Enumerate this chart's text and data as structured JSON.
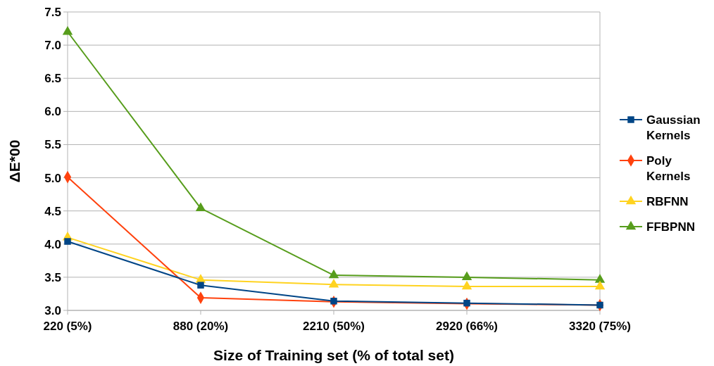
{
  "chart_data": {
    "type": "line",
    "xlabel": "Size of Training set (% of total set)",
    "ylabel": "ΔE*00",
    "categories": [
      "220 (5%)",
      "880 (20%)",
      "2210 (50%)",
      "2920 (66%)",
      "3320 (75%)"
    ],
    "ylim": [
      3.0,
      7.5
    ],
    "yticks": [
      {
        "value": 3,
        "label": "3.0"
      },
      {
        "value": 3.5,
        "label": "3.5"
      },
      {
        "value": 4,
        "label": "4.0"
      },
      {
        "value": 4.5,
        "label": "4.5"
      },
      {
        "value": 5,
        "label": "5.0"
      },
      {
        "value": 5.5,
        "label": "5.5"
      },
      {
        "value": 6,
        "label": "6.0"
      },
      {
        "value": 6.5,
        "label": "6.5"
      },
      {
        "value": 7,
        "label": "7.0"
      },
      {
        "value": 7.5,
        "label": "7.5"
      }
    ],
    "grid": "y",
    "legend": "right",
    "series": [
      {
        "name": "Gaussian Kernels",
        "color": "#004586",
        "marker": "square",
        "values": [
          4.04,
          3.38,
          3.14,
          3.11,
          3.08
        ]
      },
      {
        "name": "Poly Kernels",
        "color": "#ff420e",
        "marker": "diamond",
        "values": [
          5.01,
          3.19,
          3.13,
          3.1,
          3.08
        ]
      },
      {
        "name": "RBFNN",
        "color": "#ffd320",
        "marker": "triangle",
        "values": [
          4.1,
          3.46,
          3.39,
          3.36,
          3.36
        ]
      },
      {
        "name": "FFBPNN",
        "color": "#579d1c",
        "marker": "triangle",
        "values": [
          7.2,
          4.54,
          3.53,
          3.5,
          3.46
        ]
      }
    ]
  }
}
